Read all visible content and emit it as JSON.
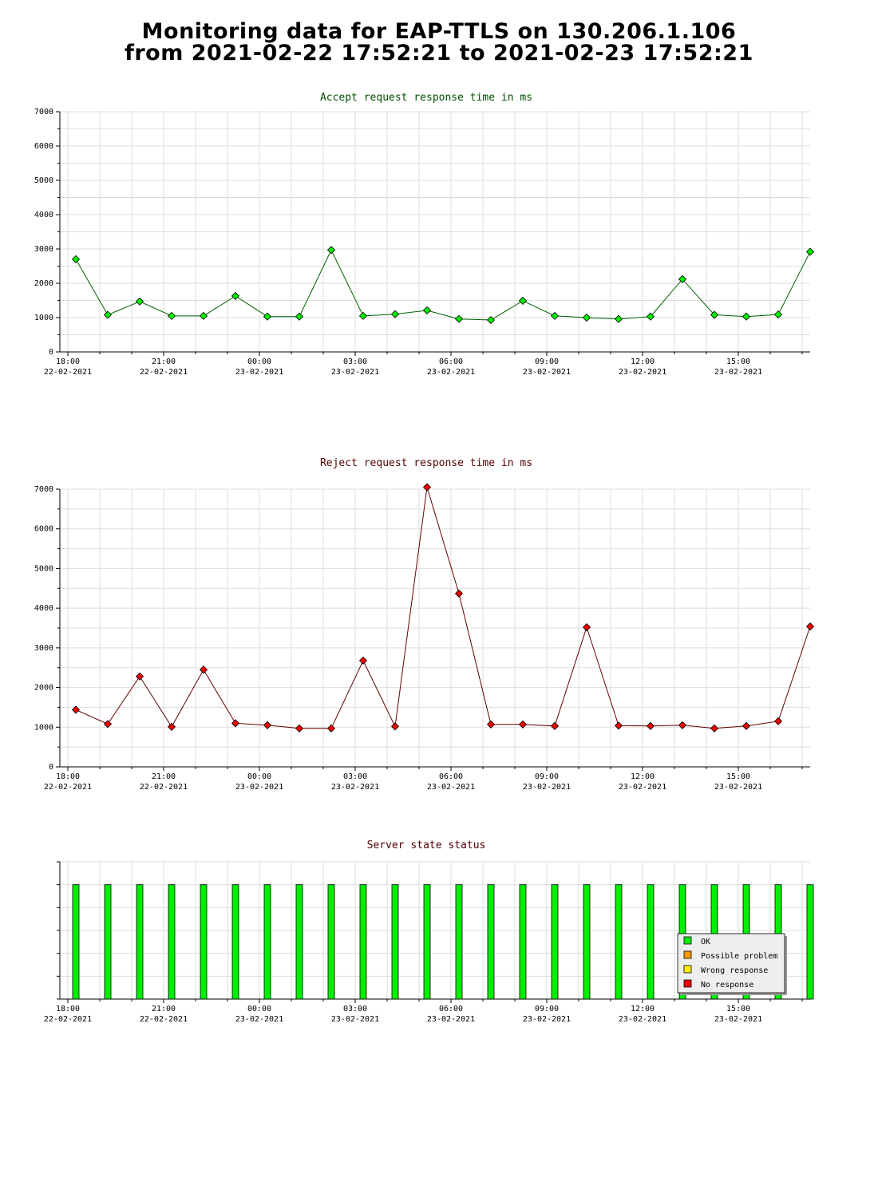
{
  "page": {
    "title_line1": "Monitoring data for EAP-TTLS on 130.206.1.106",
    "title_line2": "from 2021-02-22 17:52:21 to 2021-02-23 17:52:21"
  },
  "colors": {
    "accept_title": "#005000",
    "reject_title": "#500000",
    "status_title": "#500000",
    "accept_line": "#006000",
    "accept_marker": "#00ee00",
    "reject_line": "#600000",
    "reject_marker": "#ee0000",
    "ok": "#00ee00",
    "possible_problem": "#ff9900",
    "wrong_response": "#ffee00",
    "no_response": "#ee0000"
  },
  "x_ticks": [
    {
      "time": "18:00",
      "date": "22-02-2021"
    },
    {
      "time": "21:00",
      "date": "22-02-2021"
    },
    {
      "time": "00:00",
      "date": "23-02-2021"
    },
    {
      "time": "03:00",
      "date": "23-02-2021"
    },
    {
      "time": "06:00",
      "date": "23-02-2021"
    },
    {
      "time": "09:00",
      "date": "23-02-2021"
    },
    {
      "time": "12:00",
      "date": "23-02-2021"
    },
    {
      "time": "15:00",
      "date": "23-02-2021"
    }
  ],
  "chart_data": [
    {
      "type": "line",
      "title": "Accept request response time in ms",
      "xlabel": "",
      "ylabel": "",
      "ylim": [
        0,
        7000
      ],
      "y_ticks": [
        0,
        1000,
        2000,
        3000,
        4000,
        5000,
        6000,
        7000
      ],
      "x_hours": [
        18.25,
        19.25,
        20.25,
        21.25,
        22.25,
        23.25,
        24.25,
        25.25,
        26.25,
        27.25,
        28.25,
        29.25,
        30.25,
        31.25,
        32.25,
        33.25,
        34.25,
        35.25,
        36.25,
        37.25,
        38.25,
        39.25,
        40.25,
        41.25
      ],
      "values": [
        2700,
        1080,
        1470,
        1050,
        1050,
        1630,
        1030,
        1030,
        2970,
        1050,
        1100,
        1210,
        960,
        930,
        1490,
        1050,
        1000,
        960,
        1030,
        2120,
        1080,
        1030,
        1090,
        2920
      ],
      "grid": true
    },
    {
      "type": "line",
      "title": "Reject request response time in ms",
      "xlabel": "",
      "ylabel": "",
      "ylim": [
        0,
        7000
      ],
      "y_ticks": [
        0,
        1000,
        2000,
        3000,
        4000,
        5000,
        6000,
        7000
      ],
      "x_hours": [
        18.25,
        19.25,
        20.25,
        21.25,
        22.25,
        23.25,
        24.25,
        25.25,
        26.25,
        27.25,
        28.25,
        29.25,
        30.25,
        31.25,
        32.25,
        33.25,
        34.25,
        35.25,
        36.25,
        37.25,
        38.25,
        39.25,
        40.25,
        41.25
      ],
      "values": [
        1440,
        1080,
        2280,
        1010,
        2450,
        1100,
        1050,
        970,
        970,
        2680,
        1020,
        7050,
        4370,
        1070,
        1070,
        1030,
        3520,
        1040,
        1030,
        1050,
        970,
        1030,
        1150,
        3540
      ],
      "grid": true
    },
    {
      "type": "bar",
      "title": "Server state status",
      "x_hours": [
        18.25,
        19.25,
        20.25,
        21.25,
        22.25,
        23.25,
        24.25,
        25.25,
        26.25,
        27.25,
        28.25,
        29.25,
        30.25,
        31.25,
        32.25,
        33.25,
        34.25,
        35.25,
        36.25,
        37.25,
        38.25,
        39.25,
        40.25,
        41.25
      ],
      "status": [
        "OK",
        "OK",
        "OK",
        "OK",
        "OK",
        "OK",
        "OK",
        "OK",
        "OK",
        "OK",
        "OK",
        "OK",
        "OK",
        "OK",
        "OK",
        "OK",
        "OK",
        "OK",
        "OK",
        "OK",
        "OK",
        "OK",
        "OK",
        "OK"
      ],
      "legend": [
        {
          "label": "OK",
          "color_key": "ok"
        },
        {
          "label": "Possible problem",
          "color_key": "possible_problem"
        },
        {
          "label": "Wrong response",
          "color_key": "wrong_response"
        },
        {
          "label": "No response",
          "color_key": "no_response"
        }
      ],
      "legend_position": "bottom-right",
      "grid": true
    }
  ]
}
